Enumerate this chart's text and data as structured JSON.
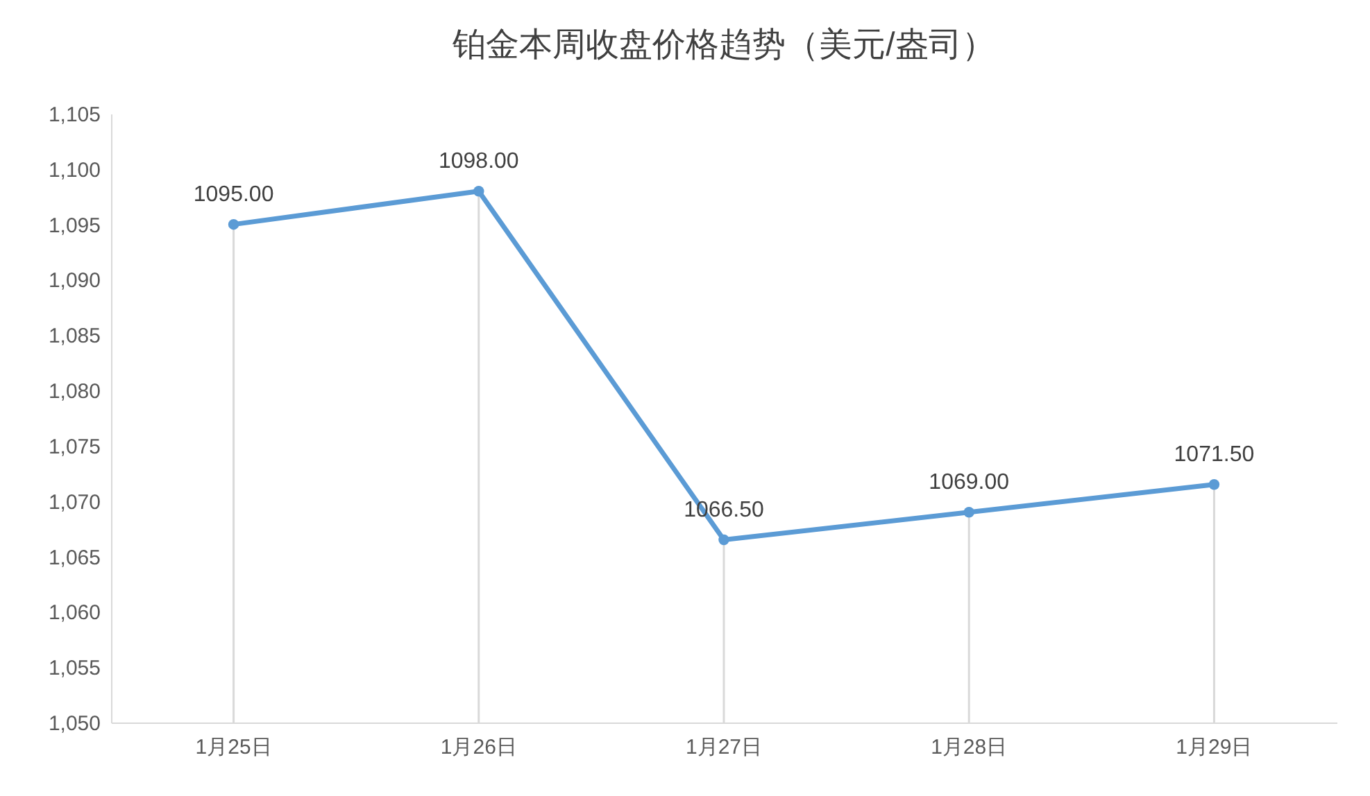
{
  "chart_data": {
    "type": "line",
    "title": "铂金本周收盘价格趋势（美元/盎司）",
    "categories": [
      "1月25日",
      "1月26日",
      "1月27日",
      "1月28日",
      "1月29日"
    ],
    "series": [
      {
        "color": "#5b9bd5",
        "values": [
          1095,
          1098,
          1066.5,
          1069,
          1071.5
        ],
        "value_labels": [
          "1095.00",
          "1098.00",
          "1066.50",
          "1069.00",
          "1071.50"
        ]
      }
    ],
    "ylim": [
      1050,
      1105
    ],
    "yticks": [
      {
        "value": 1050,
        "label": "1,050"
      },
      {
        "value": 1055,
        "label": "1,055"
      },
      {
        "value": 1060,
        "label": "1,060"
      },
      {
        "value": 1065,
        "label": "1,065"
      },
      {
        "value": 1070,
        "label": "1,070"
      },
      {
        "value": 1075,
        "label": "1,075"
      },
      {
        "value": 1080,
        "label": "1,080"
      },
      {
        "value": 1085,
        "label": "1,085"
      },
      {
        "value": 1090,
        "label": "1,090"
      },
      {
        "value": 1095,
        "label": "1,095"
      },
      {
        "value": 1100,
        "label": "1,100"
      },
      {
        "value": 1105,
        "label": "1,105"
      }
    ],
    "marker": "circle"
  }
}
